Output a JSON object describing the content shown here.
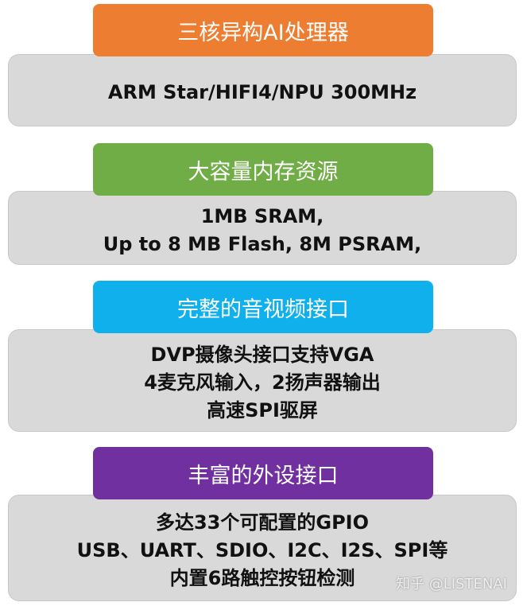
{
  "sections": [
    {
      "title": "三核异构AI处理器",
      "lines": [
        "ARM Star/HIFI4/NPU 300MHz"
      ]
    },
    {
      "title": "大容量内存资源",
      "lines": [
        "1MB SRAM,",
        "Up to 8 MB Flash, 8M PSRAM,"
      ]
    },
    {
      "title": "完整的音视频接口",
      "lines": [
        "DVP摄像头接口支持VGA",
        "4麦克风输入，2扬声器输出",
        "高速SPI驱屏"
      ]
    },
    {
      "title": "丰富的外设接口",
      "lines": [
        "多达33个可配置的GPIO",
        "USB、UART、SDIO、I2C、I2S、SPI等",
        "内置6路触控按钮检测"
      ]
    }
  ],
  "watermark": "知乎 @LISTENAI"
}
